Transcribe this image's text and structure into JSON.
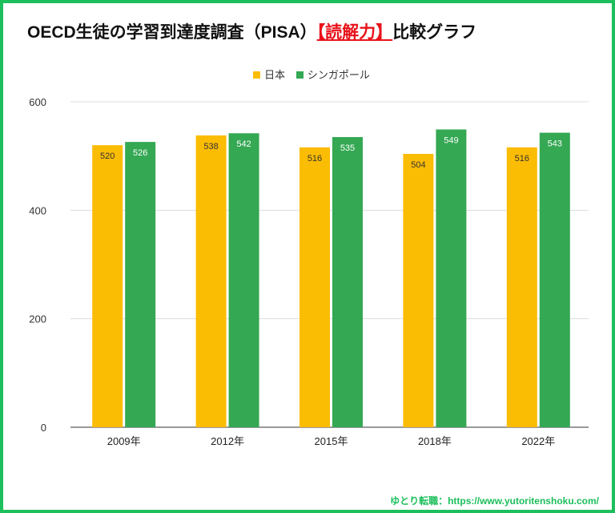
{
  "title": {
    "prefix": "OECD生徒の学習到達度調査（PISA）",
    "highlight": "【読解力】",
    "suffix": "比較グラフ"
  },
  "footer": "ゆとり転職：https://www.yutoritenshoku.com/",
  "chart_data": {
    "type": "bar",
    "categories": [
      "2009年",
      "2012年",
      "2015年",
      "2018年",
      "2022年"
    ],
    "series": [
      {
        "name": "日本",
        "color": "#fbbc04",
        "values": [
          520,
          538,
          516,
          504,
          516
        ]
      },
      {
        "name": "シンガポール",
        "color": "#34a853",
        "values": [
          526,
          542,
          535,
          549,
          543
        ]
      }
    ],
    "ylim": [
      0,
      600
    ],
    "yticks": [
      0,
      200,
      400,
      600
    ],
    "grid": true,
    "legend": "top"
  }
}
